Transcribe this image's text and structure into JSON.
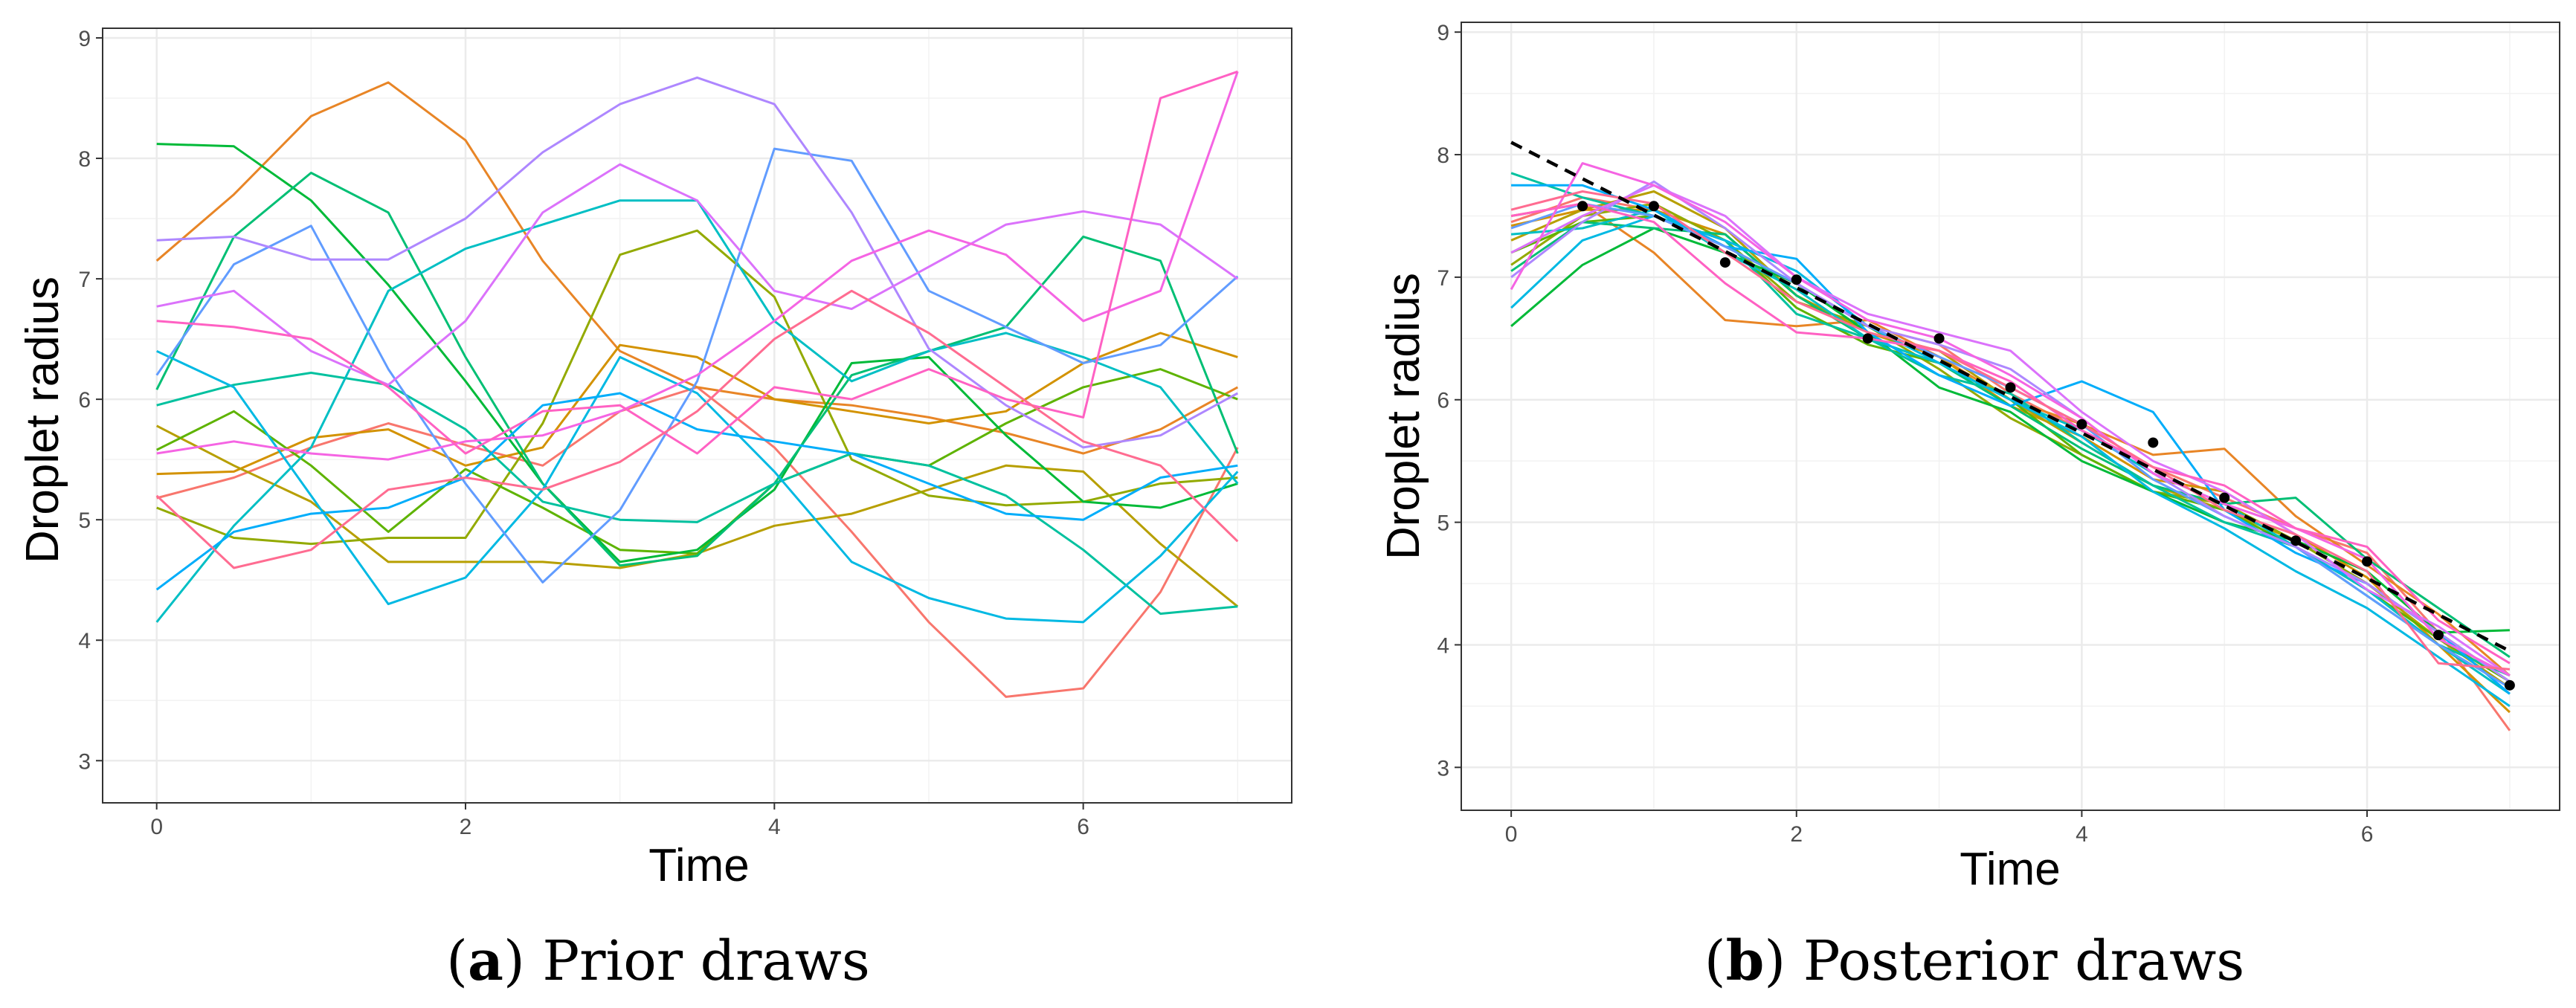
{
  "chart_data": [
    {
      "type": "line",
      "id": "prior",
      "caption_letter": "a",
      "caption_text": "Prior draws",
      "xlabel": "Time",
      "ylabel": "Droplet radius",
      "xlim": [
        -0.35,
        7.35
      ],
      "ylim": [
        2.65,
        9.08
      ],
      "xticks": [
        0,
        2,
        4,
        6
      ],
      "yticks": [
        3,
        4,
        5,
        6,
        7,
        8,
        9
      ],
      "grid": true,
      "x": [
        0,
        0.5,
        1,
        1.5,
        2,
        2.5,
        3,
        3.5,
        4,
        4.5,
        5,
        5.5,
        6,
        6.5,
        7
      ],
      "series": [
        {
          "name": "draw-1",
          "color": "#F8766D",
          "values": [
            5.18,
            5.35,
            5.6,
            5.8,
            5.62,
            5.45,
            5.9,
            6.1,
            5.6,
            4.9,
            4.15,
            3.53,
            3.6,
            4.4,
            5.6
          ]
        },
        {
          "name": "draw-2",
          "color": "#E88526",
          "values": [
            7.15,
            7.7,
            8.35,
            8.63,
            8.15,
            7.15,
            6.4,
            6.1,
            6.0,
            5.95,
            5.85,
            5.72,
            5.55,
            5.75,
            6.1
          ]
        },
        {
          "name": "draw-3",
          "color": "#D39200",
          "values": [
            5.38,
            5.4,
            5.68,
            5.75,
            5.45,
            5.6,
            6.45,
            6.35,
            6.0,
            5.9,
            5.8,
            5.9,
            6.3,
            6.55,
            6.35
          ]
        },
        {
          "name": "draw-4",
          "color": "#B79F00",
          "values": [
            5.78,
            5.45,
            5.15,
            4.65,
            4.65,
            4.65,
            4.6,
            4.72,
            4.95,
            5.05,
            5.25,
            5.45,
            5.4,
            4.8,
            4.28
          ]
        },
        {
          "name": "draw-5",
          "color": "#93AA00",
          "values": [
            5.1,
            4.85,
            4.8,
            4.85,
            4.85,
            5.8,
            7.2,
            7.4,
            6.85,
            5.5,
            5.2,
            5.12,
            5.15,
            5.3,
            5.35
          ]
        },
        {
          "name": "draw-6",
          "color": "#5EB300",
          "values": [
            5.58,
            5.9,
            5.45,
            4.9,
            5.42,
            5.1,
            4.75,
            4.72,
            5.3,
            5.55,
            5.45,
            5.8,
            6.1,
            6.25,
            6.0
          ]
        },
        {
          "name": "draw-7",
          "color": "#00BA38",
          "values": [
            8.12,
            8.1,
            7.65,
            6.95,
            6.15,
            5.3,
            4.65,
            4.75,
            5.25,
            6.3,
            6.35,
            5.7,
            5.15,
            5.1,
            5.3
          ]
        },
        {
          "name": "draw-8",
          "color": "#00BF74",
          "values": [
            6.08,
            7.35,
            7.88,
            7.55,
            6.35,
            5.3,
            4.62,
            4.7,
            5.3,
            6.2,
            6.4,
            6.6,
            7.35,
            7.15,
            5.55
          ]
        },
        {
          "name": "draw-9",
          "color": "#00C19F",
          "values": [
            5.95,
            6.12,
            6.22,
            6.12,
            5.75,
            5.15,
            5.0,
            4.98,
            5.3,
            5.55,
            5.45,
            5.2,
            4.75,
            4.22,
            4.28
          ]
        },
        {
          "name": "draw-10",
          "color": "#00BFC4",
          "values": [
            4.15,
            4.95,
            5.6,
            6.9,
            7.25,
            7.45,
            7.65,
            7.65,
            6.65,
            6.15,
            6.4,
            6.55,
            6.35,
            6.1,
            5.3
          ]
        },
        {
          "name": "draw-11",
          "color": "#00B9E3",
          "values": [
            6.4,
            6.1,
            5.2,
            4.3,
            4.52,
            5.25,
            6.35,
            6.05,
            5.4,
            4.65,
            4.35,
            4.18,
            4.15,
            4.7,
            5.4
          ]
        },
        {
          "name": "draw-12",
          "color": "#00ADFA",
          "values": [
            4.42,
            4.9,
            5.05,
            5.1,
            5.35,
            5.95,
            6.05,
            5.75,
            5.65,
            5.55,
            5.3,
            5.05,
            5.0,
            5.35,
            5.45
          ]
        },
        {
          "name": "draw-13",
          "color": "#619CFF",
          "values": [
            6.2,
            7.12,
            7.44,
            6.25,
            5.3,
            4.48,
            5.08,
            6.15,
            8.08,
            7.98,
            6.9,
            6.6,
            6.3,
            6.45,
            7.02
          ]
        },
        {
          "name": "draw-14",
          "color": "#AE87FF",
          "values": [
            7.32,
            7.35,
            7.16,
            7.16,
            7.5,
            8.05,
            8.45,
            8.67,
            8.45,
            7.55,
            6.42,
            5.95,
            5.6,
            5.7,
            6.05
          ]
        },
        {
          "name": "draw-15",
          "color": "#DB72FB",
          "values": [
            6.77,
            6.9,
            6.4,
            6.12,
            6.65,
            7.55,
            7.95,
            7.65,
            6.9,
            6.75,
            7.1,
            7.45,
            7.56,
            7.45,
            7.0
          ]
        },
        {
          "name": "draw-16",
          "color": "#F564E3",
          "values": [
            5.55,
            5.65,
            5.55,
            5.5,
            5.65,
            5.7,
            5.9,
            6.2,
            6.65,
            7.15,
            7.4,
            7.2,
            6.65,
            6.9,
            8.72
          ]
        },
        {
          "name": "draw-17",
          "color": "#FF61C3",
          "values": [
            6.65,
            6.6,
            6.5,
            6.1,
            5.55,
            5.9,
            5.95,
            5.55,
            6.1,
            6.0,
            6.25,
            6.0,
            5.85,
            8.5,
            8.72
          ]
        },
        {
          "name": "draw-18",
          "color": "#FF6C91",
          "values": [
            5.2,
            4.6,
            4.75,
            5.25,
            5.35,
            5.25,
            5.48,
            5.9,
            6.5,
            6.9,
            6.55,
            6.1,
            5.65,
            5.45,
            4.82
          ]
        }
      ]
    },
    {
      "type": "line",
      "id": "posterior",
      "caption_letter": "b",
      "caption_text": "Posterior draws",
      "xlabel": "Time",
      "ylabel": "Droplet radius",
      "xlim": [
        -0.35,
        7.35
      ],
      "ylim": [
        2.65,
        9.08
      ],
      "xticks": [
        0,
        2,
        4,
        6
      ],
      "yticks": [
        3,
        4,
        5,
        6,
        7,
        8,
        9
      ],
      "grid": true,
      "x": [
        0,
        0.5,
        1,
        1.5,
        2,
        2.5,
        3,
        3.5,
        4,
        4.5,
        5,
        5.5,
        6,
        6.5,
        7
      ],
      "mean_line": {
        "x": [
          0,
          7
        ],
        "values": [
          8.1,
          3.95
        ]
      },
      "observations": {
        "x": [
          0.5,
          1,
          1.5,
          2,
          2.5,
          3,
          3.5,
          4,
          4.5,
          5,
          5.5,
          6,
          6.5,
          7
        ],
        "values": [
          7.58,
          7.58,
          7.12,
          6.98,
          6.5,
          6.5,
          6.1,
          5.8,
          5.65,
          5.2,
          4.85,
          4.68,
          4.08,
          3.67
        ]
      },
      "series": [
        {
          "name": "draw-1",
          "color": "#F8766D",
          "values": [
            7.45,
            7.65,
            7.55,
            7.25,
            6.95,
            6.6,
            6.45,
            6.05,
            5.75,
            5.45,
            5.2,
            4.95,
            4.75,
            4.1,
            3.3
          ]
        },
        {
          "name": "draw-2",
          "color": "#E88526",
          "values": [
            7.5,
            7.6,
            7.2,
            6.65,
            6.6,
            6.65,
            6.35,
            6.0,
            5.8,
            5.55,
            5.6,
            5.05,
            4.65,
            4.25,
            3.75
          ]
        },
        {
          "name": "draw-3",
          "color": "#D39200",
          "values": [
            7.42,
            7.55,
            7.55,
            7.35,
            6.85,
            6.55,
            6.35,
            5.95,
            5.7,
            5.35,
            5.25,
            4.9,
            4.55,
            4.0,
            3.45
          ]
        },
        {
          "name": "draw-4",
          "color": "#B79F00",
          "values": [
            7.3,
            7.55,
            7.7,
            7.4,
            6.85,
            6.55,
            6.4,
            6.0,
            5.65,
            5.3,
            5.1,
            4.85,
            4.5,
            4.05,
            3.65
          ]
        },
        {
          "name": "draw-5",
          "color": "#93AA00",
          "values": [
            7.1,
            7.5,
            7.6,
            7.3,
            6.8,
            6.6,
            6.25,
            5.85,
            5.55,
            5.25,
            5.15,
            4.85,
            4.5,
            4.1,
            3.7
          ]
        },
        {
          "name": "draw-6",
          "color": "#5EB300",
          "values": [
            7.2,
            7.45,
            7.5,
            7.3,
            6.75,
            6.45,
            6.3,
            6.0,
            5.55,
            5.25,
            5.1,
            4.8,
            4.45,
            4.05,
            3.7
          ]
        },
        {
          "name": "draw-7",
          "color": "#00BA38",
          "values": [
            6.6,
            7.1,
            7.4,
            7.2,
            6.95,
            6.55,
            6.1,
            5.9,
            5.5,
            5.25,
            5.0,
            4.85,
            4.6,
            4.1,
            4.12
          ]
        },
        {
          "name": "draw-8",
          "color": "#00BF74",
          "values": [
            7.05,
            7.45,
            7.4,
            7.35,
            6.85,
            6.5,
            6.3,
            5.95,
            5.6,
            5.3,
            5.15,
            5.2,
            4.7,
            4.3,
            3.9
          ]
        },
        {
          "name": "draw-9",
          "color": "#00C19F",
          "values": [
            7.85,
            7.65,
            7.5,
            7.3,
            6.7,
            6.5,
            6.2,
            6.05,
            5.65,
            5.3,
            5.0,
            4.8,
            4.4,
            4.0,
            3.75
          ]
        },
        {
          "name": "draw-10",
          "color": "#00BFC4",
          "values": [
            7.35,
            7.4,
            7.55,
            7.2,
            6.9,
            6.5,
            6.3,
            6.0,
            5.75,
            5.4,
            5.15,
            4.8,
            4.45,
            4.0,
            3.6
          ]
        },
        {
          "name": "draw-11",
          "color": "#00B9E3",
          "values": [
            6.75,
            7.3,
            7.5,
            7.3,
            7.05,
            6.6,
            6.3,
            6.0,
            5.7,
            5.25,
            4.95,
            4.6,
            4.3,
            3.9,
            3.5
          ]
        },
        {
          "name": "draw-12",
          "color": "#00ADFA",
          "values": [
            7.75,
            7.75,
            7.55,
            7.25,
            7.15,
            6.55,
            6.2,
            5.95,
            6.15,
            5.9,
            5.1,
            4.75,
            4.5,
            4.1,
            3.6
          ]
        },
        {
          "name": "draw-13",
          "color": "#619CFF",
          "values": [
            7.4,
            7.6,
            7.5,
            7.25,
            6.95,
            6.6,
            6.35,
            6.1,
            5.8,
            5.35,
            5.05,
            4.8,
            4.4,
            4.0,
            3.65
          ]
        },
        {
          "name": "draw-14",
          "color": "#AE87FF",
          "values": [
            7.0,
            7.45,
            7.78,
            7.4,
            6.95,
            6.6,
            6.45,
            6.25,
            5.85,
            5.4,
            5.05,
            4.8,
            4.5,
            4.1,
            3.7
          ]
        },
        {
          "name": "draw-15",
          "color": "#DB72FB",
          "values": [
            7.2,
            7.5,
            7.75,
            7.5,
            7.0,
            6.7,
            6.55,
            6.4,
            5.9,
            5.5,
            5.25,
            4.9,
            4.45,
            4.15,
            3.75
          ]
        },
        {
          "name": "draw-16",
          "color": "#F564E3",
          "values": [
            6.9,
            7.93,
            7.75,
            7.45,
            7.0,
            6.65,
            6.5,
            6.2,
            5.85,
            5.4,
            5.15,
            4.95,
            4.7,
            4.05,
            3.75
          ]
        },
        {
          "name": "draw-17",
          "color": "#FF61C3",
          "values": [
            7.5,
            7.6,
            7.45,
            6.95,
            6.55,
            6.5,
            6.4,
            6.15,
            5.75,
            5.45,
            5.3,
            4.95,
            4.8,
            4.2,
            3.85
          ]
        },
        {
          "name": "draw-18",
          "color": "#FF6C91",
          "values": [
            7.55,
            7.7,
            7.6,
            7.2,
            6.8,
            6.55,
            6.4,
            6.1,
            5.8,
            5.45,
            5.1,
            4.9,
            4.6,
            3.85,
            3.8
          ]
        }
      ]
    }
  ]
}
